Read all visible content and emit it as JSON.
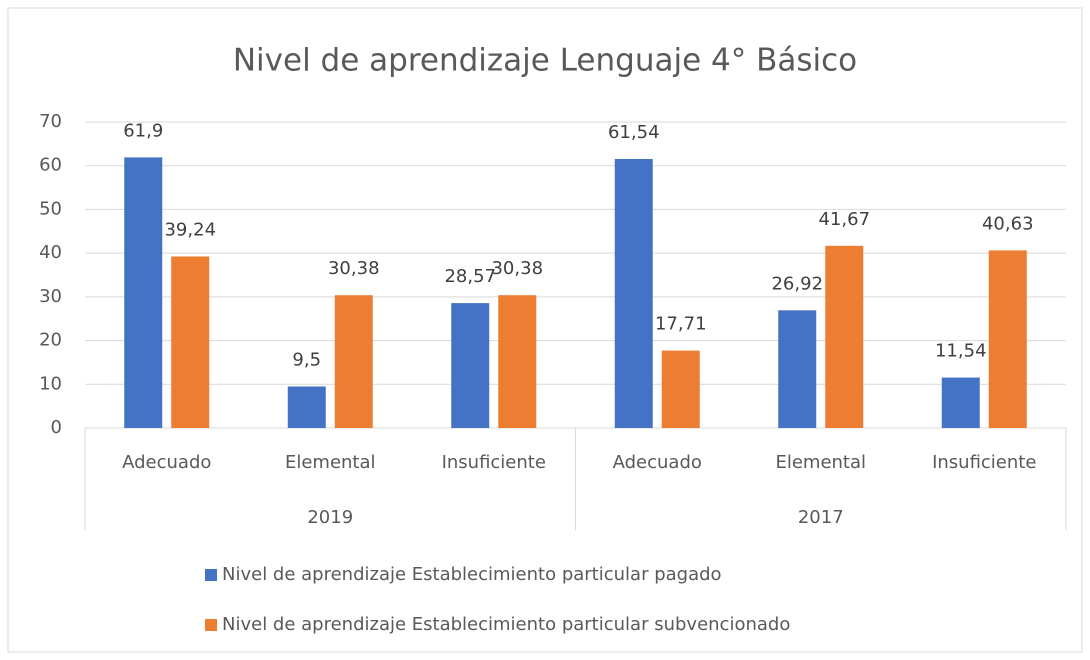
{
  "chart_data": {
    "type": "bar",
    "title": "Nivel de aprendizaje Lenguaje 4° Básico",
    "categories": [
      "Adecuado",
      "Elemental",
      "Insuficiente",
      "Adecuado",
      "Elemental",
      "Insuficiente"
    ],
    "groups": [
      "2019",
      "2017"
    ],
    "series": [
      {
        "name": "Nivel de aprendizaje Establecimiento particular pagado",
        "color": "#4472c4",
        "values": [
          61.9,
          9.5,
          28.57,
          61.54,
          26.92,
          11.54
        ],
        "value_labels": [
          "61,9",
          "9,5",
          "28,57",
          "61,54",
          "26,92",
          "11,54"
        ]
      },
      {
        "name": "Nivel de aprendizaje Establecimiento particular subvencionado",
        "color": "#ed7d31",
        "values": [
          39.24,
          30.38,
          30.38,
          17.71,
          41.67,
          40.63
        ],
        "value_labels": [
          "39,24",
          "30,38",
          "30,38",
          "17,71",
          "41,67",
          "40,63"
        ]
      }
    ],
    "ylim": [
      0,
      70
    ],
    "yticks": [
      0,
      10,
      20,
      30,
      40,
      50,
      60,
      70
    ],
    "grid": true,
    "legend": "bottom"
  }
}
